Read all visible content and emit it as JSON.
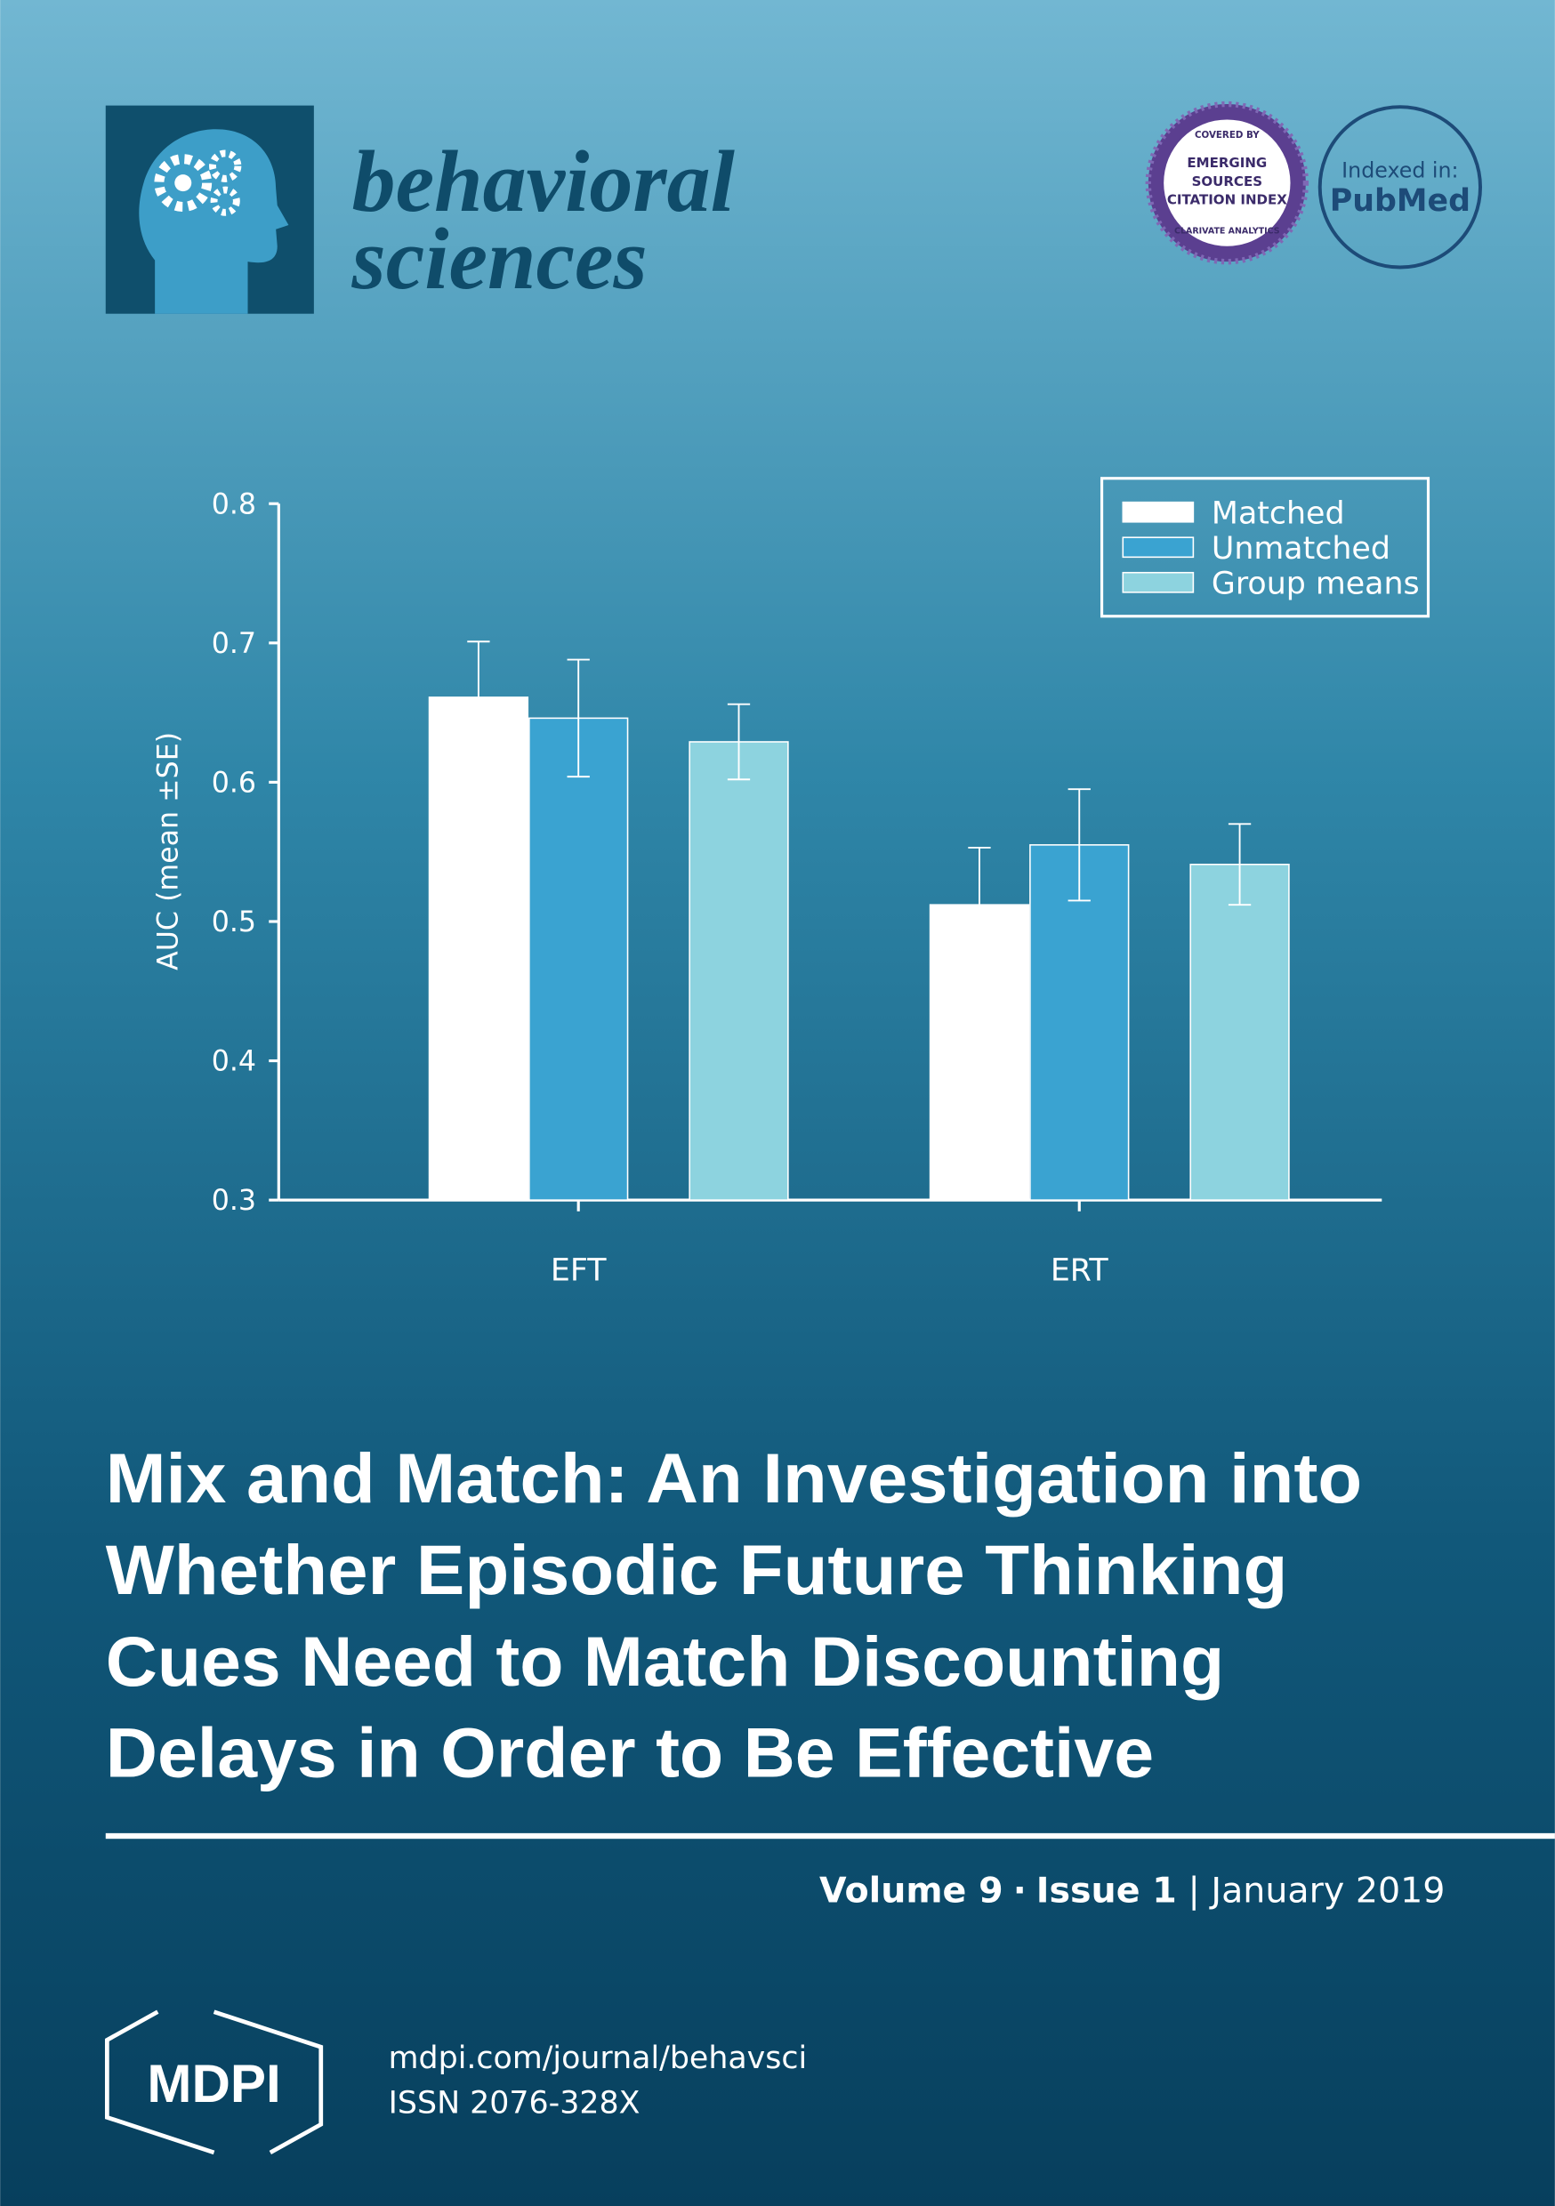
{
  "header": {
    "journal_line1": "behavioral",
    "journal_line2": "sciences",
    "esci": {
      "top": "COVERED BY",
      "lines": [
        "EMERGING",
        "SOURCES",
        "CITATION INDEX"
      ],
      "bottom": "CLARIVATE ANALYTICS"
    },
    "pubmed": {
      "top": "Indexed in:",
      "name": "PubMed"
    }
  },
  "chart_data": {
    "type": "bar",
    "categories": [
      "EFT",
      "ERT"
    ],
    "series": [
      {
        "name": "Matched",
        "color": "#ffffff",
        "values": [
          0.661,
          0.512
        ],
        "errors": [
          0.04,
          0.041
        ]
      },
      {
        "name": "Unmatched",
        "color": "#3aa3d1",
        "values": [
          0.646,
          0.555
        ],
        "errors": [
          0.042,
          0.04
        ]
      },
      {
        "name": "Group means",
        "color": "#8dd3df",
        "values": [
          0.629,
          0.541
        ],
        "errors": [
          0.027,
          0.029
        ]
      }
    ],
    "ylabel": "AUC (mean ±SE)",
    "ylim": [
      0.3,
      0.8
    ],
    "yticks": [
      0.3,
      0.4,
      0.5,
      0.6,
      0.7,
      0.8
    ],
    "legend": "upper right"
  },
  "title": {
    "lines": [
      "Mix and Match: An Investigation into",
      "Whether Episodic Future Thinking",
      "Cues Need to Match Discounting",
      "Delays in Order to Be Effective"
    ]
  },
  "issue_info": {
    "volume": "Volume 9",
    "dot": "·",
    "issue": "Issue 1",
    "bar": "|",
    "date": "January 2019"
  },
  "footer": {
    "publisher": "MDPI",
    "url": "mdpi.com/journal/behavsci",
    "issn": "ISSN 2076-328X"
  }
}
